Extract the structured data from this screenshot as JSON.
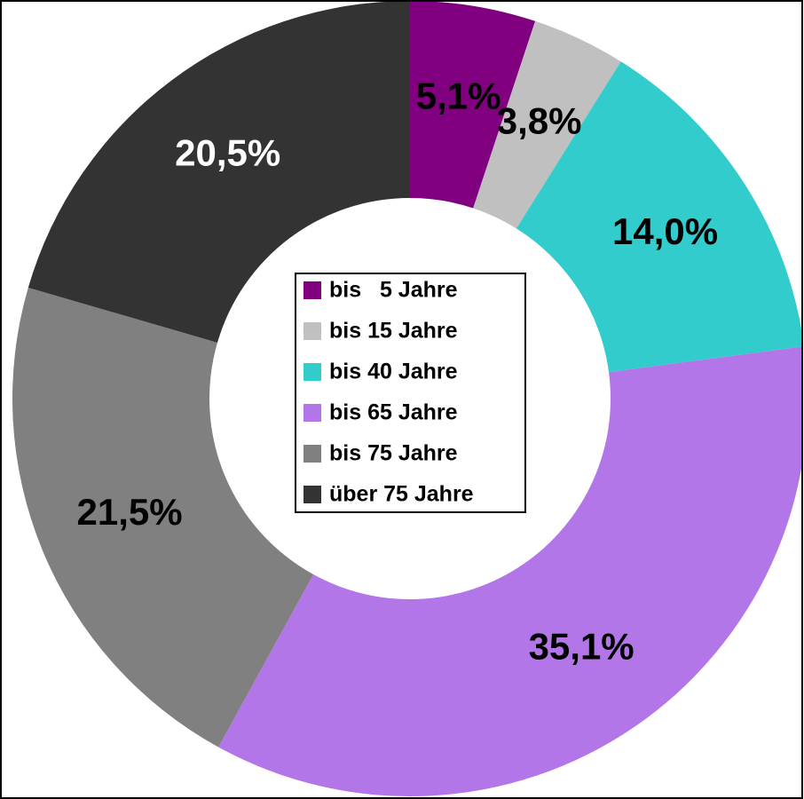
{
  "chart_data": {
    "type": "donut",
    "categories": [
      "bis   5 Jahre",
      "bis 15 Jahre",
      "bis 40 Jahre",
      "bis 65 Jahre",
      "bis 75 Jahre",
      "über 75 Jahre"
    ],
    "values": [
      5.1,
      3.8,
      14.0,
      35.1,
      21.5,
      20.5
    ],
    "value_labels": [
      "5,1%",
      "3,8%",
      "14,0%",
      "35,1%",
      "21,5%",
      "20,5%"
    ],
    "colors": [
      "#800080",
      "#c0c0c0",
      "#33cccc",
      "#b376e8",
      "#808080",
      "#333333"
    ],
    "label_colors": [
      "#000000",
      "#000000",
      "#000000",
      "#000000",
      "#000000",
      "#ffffff"
    ],
    "legend": "center"
  }
}
